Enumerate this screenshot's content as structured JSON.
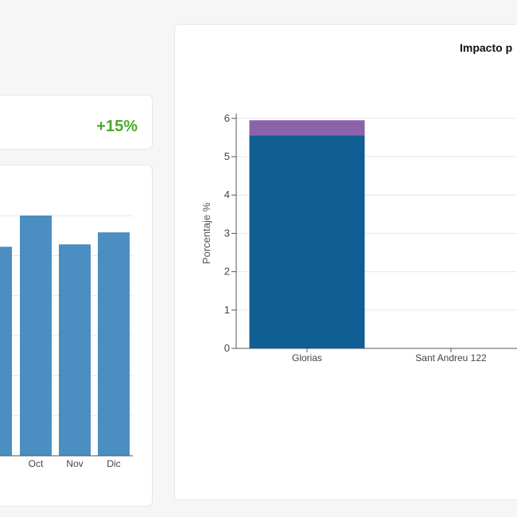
{
  "kpi": {
    "change": "+15%",
    "color": "#4caa28"
  },
  "monthly_chart": {
    "type": "bar",
    "color": "#4a8ec2",
    "categories": [
      "Sep",
      "Oct",
      "Nov",
      "Dic"
    ],
    "tick_labels": [
      "p",
      "Oct",
      "Nov",
      "Dic"
    ],
    "values": [
      0.87,
      1.0,
      0.88,
      0.93
    ]
  },
  "impact_chart": {
    "title": "Impacto p",
    "ylabel": "Porcentaje %",
    "yticks": [
      "0",
      "1",
      "2",
      "3",
      "4",
      "5",
      "6"
    ]
  },
  "chart_data": [
    {
      "type": "bar",
      "title": "",
      "xlabel": "",
      "ylabel": "",
      "categories": [
        "Sep",
        "Oct",
        "Nov",
        "Dic"
      ],
      "values": [
        0.87,
        1.0,
        0.88,
        0.93
      ],
      "grid": true,
      "note_values": "relative heights, no y-axis visible"
    },
    {
      "type": "bar",
      "title": "Impacto p",
      "xlabel": "",
      "ylabel": "Porcentaje %",
      "ylim": [
        0,
        6
      ],
      "categories": [
        "Glorias",
        "Sant Andreu 122"
      ],
      "series": [
        {
          "color": "#0f5e94",
          "values": [
            5.55,
            0
          ]
        },
        {
          "color": "#8c62ab",
          "values": [
            0.4,
            0
          ]
        }
      ],
      "grid": true
    }
  ]
}
